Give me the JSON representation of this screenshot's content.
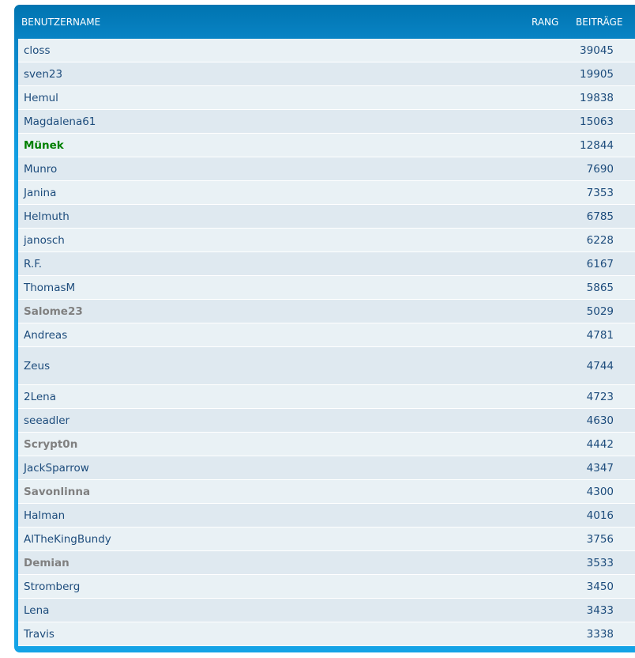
{
  "header": {
    "username": "BENUTZERNAME",
    "rank": "RANG",
    "posts": "BEITRÄGE"
  },
  "colors": {
    "header_bg": "#0074B0",
    "moderator": "#008000",
    "inactive": "#808080",
    "text": "#1d4c7c"
  },
  "rows": [
    {
      "name": "closs",
      "posts": "39045"
    },
    {
      "name": "sven23",
      "posts": "19905"
    },
    {
      "name": "Hemul",
      "posts": "19838"
    },
    {
      "name": "Magdalena61",
      "posts": "15063"
    },
    {
      "name": "Münek",
      "posts": "12844",
      "style": "mod"
    },
    {
      "name": "Munro",
      "posts": "7690"
    },
    {
      "name": "Janina",
      "posts": "7353"
    },
    {
      "name": "Helmuth",
      "posts": "6785"
    },
    {
      "name": "janosch",
      "posts": "6228"
    },
    {
      "name": "R.F.",
      "posts": "6167"
    },
    {
      "name": "ThomasM",
      "posts": "5865"
    },
    {
      "name": "Salome23",
      "posts": "5029",
      "style": "inactive"
    },
    {
      "name": "Andreas",
      "posts": "4781"
    },
    {
      "name": "Zeus",
      "posts": "4744",
      "style": "tall"
    },
    {
      "name": "2Lena",
      "posts": "4723"
    },
    {
      "name": "seeadler",
      "posts": "4630"
    },
    {
      "name": "Scrypt0n",
      "posts": "4442",
      "style": "inactive"
    },
    {
      "name": "JackSparrow",
      "posts": "4347"
    },
    {
      "name": "Savonlinna",
      "posts": "4300",
      "style": "inactive"
    },
    {
      "name": "Halman",
      "posts": "4016"
    },
    {
      "name": "AlTheKingBundy",
      "posts": "3756"
    },
    {
      "name": "Demian",
      "posts": "3533",
      "style": "inactive"
    },
    {
      "name": "Stromberg",
      "posts": "3450"
    },
    {
      "name": "Lena",
      "posts": "3433"
    },
    {
      "name": "Travis",
      "posts": "3338"
    }
  ]
}
